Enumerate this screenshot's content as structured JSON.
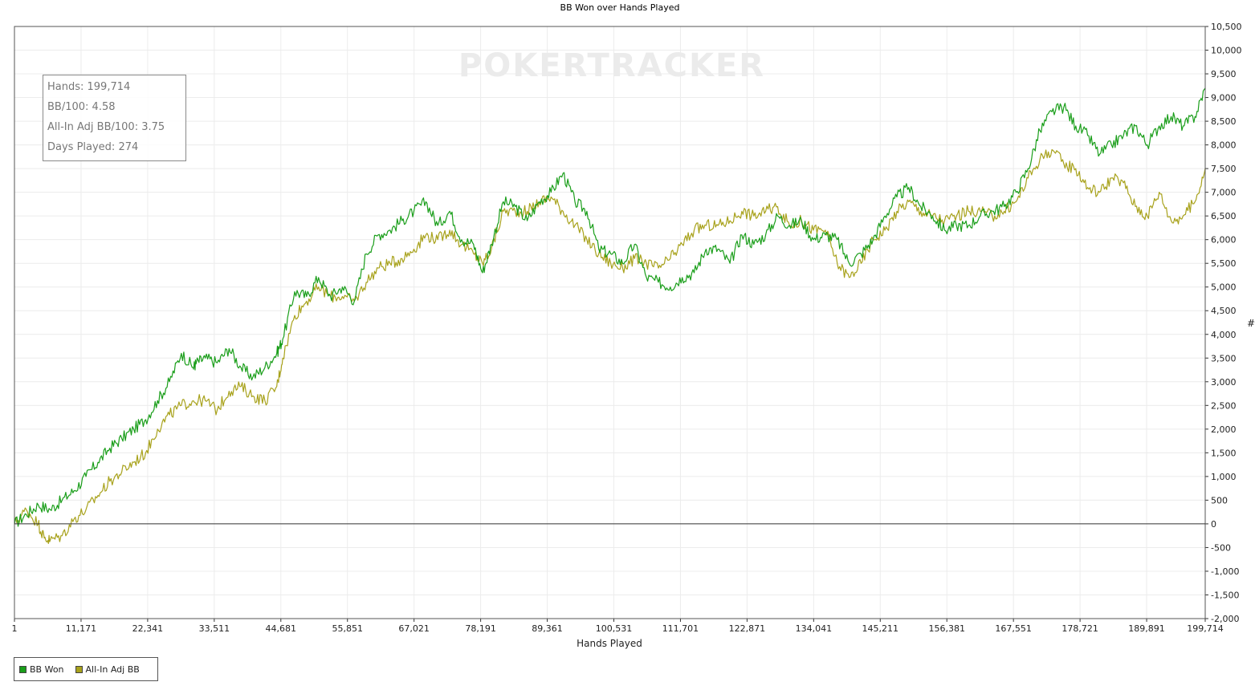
{
  "chart_data": {
    "type": "line",
    "title": "BB Won over Hands Played",
    "xlabel": "Hands Played",
    "ylabel": "#",
    "watermark": "POKERTRACKER",
    "xlim": [
      1,
      199714
    ],
    "ylim": [
      -2000,
      10500
    ],
    "x_ticks": [
      1,
      11171,
      22341,
      33511,
      44681,
      55851,
      67021,
      78191,
      89361,
      100531,
      111701,
      122871,
      134041,
      145211,
      156381,
      167551,
      178721,
      189891,
      199714
    ],
    "x_tick_labels": [
      "1",
      "11,171",
      "22,341",
      "33,511",
      "44,681",
      "55,851",
      "67,021",
      "78,191",
      "89,361",
      "100,531",
      "111,701",
      "122,871",
      "134,041",
      "145,211",
      "156,381",
      "167,551",
      "178,721",
      "189,891",
      "199,714"
    ],
    "y_ticks": [
      10500,
      10000,
      9500,
      9000,
      8500,
      8000,
      7500,
      7000,
      6500,
      6000,
      5500,
      5000,
      4500,
      4000,
      3500,
      3000,
      2500,
      2000,
      1500,
      1000,
      500,
      0,
      -500,
      -1000,
      -1500,
      -2000
    ],
    "y_tick_labels": [
      "10,500",
      "10,000",
      "9,500",
      "9,000",
      "8,500",
      "8,000",
      "7,500",
      "7,000",
      "6,500",
      "6,000",
      "5,500",
      "5,000",
      "4,500",
      "4,000",
      "3,500",
      "3,000",
      "2,500",
      "2,000",
      "1,500",
      "1,000",
      "500",
      "0",
      "-500",
      "-1,000",
      "-1,500",
      "-2,000"
    ],
    "grid": true,
    "legend_position": "bottom-left",
    "series": [
      {
        "name": "BB Won",
        "color": "#1a9e1a",
        "x": [
          1,
          2000,
          4000,
          6000,
          8000,
          10000,
          12000,
          14000,
          16000,
          18000,
          20000,
          22000,
          24000,
          26000,
          28000,
          30000,
          30500,
          32000,
          34000,
          36000,
          38000,
          40000,
          42000,
          44000,
          45000,
          47000,
          49000,
          51000,
          53000,
          55000,
          57000,
          59000,
          61000,
          63000,
          65000,
          67000,
          69000,
          71000,
          73000,
          75000,
          77000,
          78500,
          80000,
          82000,
          84000,
          86000,
          88000,
          90000,
          92000,
          94000,
          96000,
          98000,
          100000,
          102000,
          104000,
          106000,
          108000,
          110000,
          112000,
          114000,
          116000,
          118000,
          120000,
          122000,
          124000,
          126000,
          128000,
          130000,
          132000,
          134000,
          136000,
          138000,
          140000,
          142000,
          144000,
          146000,
          148000,
          150000,
          152000,
          154000,
          156000,
          158000,
          160000,
          162000,
          164000,
          166000,
          168000,
          170000,
          172000,
          174000,
          176000,
          178000,
          180000,
          182000,
          184000,
          186000,
          188000,
          190000,
          192000,
          194000,
          196000,
          198000,
          199714
        ],
        "values": [
          0,
          200,
          400,
          300,
          500,
          700,
          1000,
          1300,
          1600,
          1800,
          2000,
          2200,
          2600,
          3000,
          3600,
          3300,
          3400,
          3500,
          3400,
          3700,
          3300,
          3100,
          3300,
          3600,
          3900,
          4900,
          4800,
          5200,
          4800,
          5000,
          4700,
          5700,
          6100,
          6200,
          6400,
          6600,
          6800,
          6300,
          6600,
          6000,
          5900,
          5300,
          5900,
          6800,
          6700,
          6400,
          6800,
          7000,
          7400,
          6800,
          6600,
          5800,
          5700,
          5500,
          5900,
          5200,
          5100,
          5000,
          5200,
          5300,
          5800,
          5800,
          5500,
          6100,
          5900,
          6100,
          6500,
          6300,
          6400,
          6000,
          6100,
          6000,
          5500,
          5700,
          6000,
          6500,
          6900,
          7100,
          6700,
          6500,
          6200,
          6300,
          6300,
          6500,
          6600,
          6700,
          7000,
          7500,
          8300,
          8700,
          8800,
          8400,
          8200,
          7800,
          8000,
          8200,
          8400,
          8000,
          8400,
          8600,
          8400,
          8600,
          9200
        ]
      },
      {
        "name": "All-In Adj BB",
        "color": "#a8a21c",
        "x": [
          1,
          2000,
          4000,
          5000,
          6000,
          8000,
          10000,
          12000,
          14000,
          16000,
          18000,
          20000,
          22000,
          24000,
          26000,
          28000,
          30000,
          32000,
          34000,
          36000,
          38000,
          40000,
          42000,
          44000,
          45000,
          47000,
          49000,
          51000,
          53000,
          55000,
          57000,
          59000,
          61000,
          63000,
          65000,
          67000,
          69000,
          71000,
          73000,
          75000,
          77000,
          78500,
          80000,
          82000,
          84000,
          86000,
          88000,
          90000,
          92000,
          94000,
          96000,
          98000,
          100000,
          102000,
          104000,
          106000,
          108000,
          110000,
          112000,
          114000,
          116000,
          118000,
          120000,
          122000,
          124000,
          126000,
          128000,
          130000,
          132000,
          134000,
          136000,
          138000,
          140000,
          142000,
          144000,
          146000,
          148000,
          150000,
          152000,
          154000,
          156000,
          158000,
          160000,
          162000,
          164000,
          166000,
          168000,
          170000,
          172000,
          174000,
          176000,
          178000,
          180000,
          182000,
          184000,
          186000,
          188000,
          190000,
          192000,
          194000,
          196000,
          198000,
          199714
        ],
        "values": [
          0,
          300,
          0,
          -300,
          -350,
          -250,
          100,
          300,
          600,
          900,
          1100,
          1300,
          1500,
          2000,
          2300,
          2500,
          2600,
          2600,
          2400,
          2800,
          2900,
          2700,
          2600,
          2900,
          3500,
          4400,
          4700,
          5000,
          4800,
          4800,
          4700,
          5100,
          5400,
          5500,
          5600,
          5800,
          6100,
          6000,
          6200,
          5900,
          5700,
          5500,
          5800,
          6600,
          6600,
          6600,
          6800,
          6900,
          6600,
          6300,
          6000,
          5700,
          5500,
          5400,
          5600,
          5500,
          5400,
          5600,
          5900,
          6200,
          6300,
          6300,
          6400,
          6600,
          6500,
          6600,
          6700,
          6300,
          6400,
          6200,
          6200,
          5500,
          5200,
          5500,
          6000,
          6200,
          6600,
          6800,
          6600,
          6500,
          6400,
          6500,
          6600,
          6600,
          6500,
          6600,
          6800,
          7300,
          7700,
          7900,
          7600,
          7500,
          7100,
          7000,
          7300,
          7200,
          6700,
          6500,
          7000,
          6400,
          6500,
          6800,
          7500
        ]
      }
    ]
  },
  "stats": {
    "hands": "Hands: 199,714",
    "bb100": "BB/100: 4.58",
    "allin_bb100": "All-In Adj BB/100: 3.75",
    "days": "Days Played: 274"
  },
  "legend": {
    "items": [
      {
        "label": "BB Won",
        "color": "#1a9e1a"
      },
      {
        "label": "All-In Adj BB",
        "color": "#a8a21c"
      }
    ]
  }
}
